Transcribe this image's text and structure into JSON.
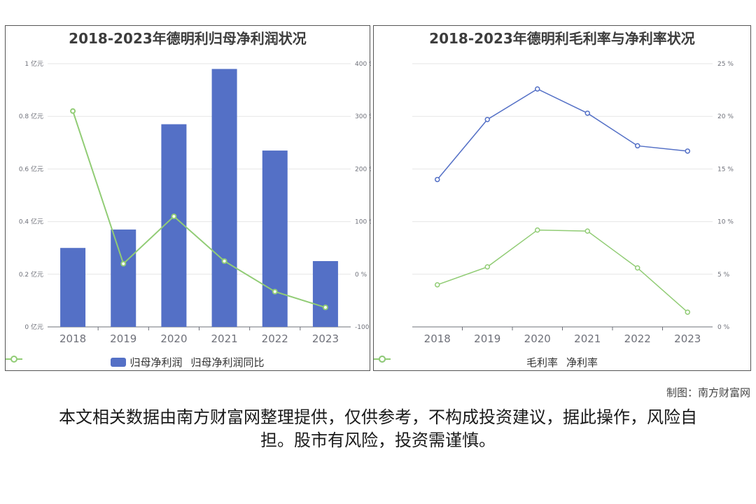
{
  "colors": {
    "bar": "#5470c6",
    "line_green": "#91cc75",
    "line_blue": "#5470c6",
    "axis_text": "#6e7079",
    "grid": "#e6e6e6"
  },
  "left_chart": {
    "title": "2018-2023年德明利归母净利润状况",
    "legend": {
      "bar_label": "归母净利润",
      "line_label": "归母净利润同比"
    },
    "y_left_ticks": [
      "0 亿元",
      "0.2 亿元",
      "0.4 亿元",
      "0.6 亿元",
      "0.8 亿元",
      "1 亿元"
    ],
    "y_right_ticks": [
      "-100 %",
      "0 %",
      "100 %",
      "200 %",
      "300 %",
      "400 %"
    ]
  },
  "right_chart": {
    "title": "2018-2023年德明利毛利率与净利率状况",
    "legend": {
      "series1_label": "毛利率",
      "series2_label": "净利率"
    },
    "y_right_ticks": [
      "0 %",
      "5 %",
      "10 %",
      "15 %",
      "20 %",
      "25 %"
    ]
  },
  "chart_data": [
    {
      "type": "bar",
      "title": "2018-2023年德明利归母净利润状况",
      "categories": [
        "2018",
        "2019",
        "2020",
        "2021",
        "2022",
        "2023"
      ],
      "ylim": [
        0,
        1
      ],
      "y2lim": [
        -100,
        400
      ],
      "grid": true,
      "legend_position": "bottom",
      "series": [
        {
          "name": "归母净利润",
          "type": "bar",
          "axis": "left",
          "unit": "亿元",
          "values": [
            0.3,
            0.37,
            0.77,
            0.98,
            0.67,
            0.25
          ]
        },
        {
          "name": "归母净利润同比",
          "type": "line",
          "axis": "right",
          "unit": "%",
          "values": [
            310,
            20,
            110,
            25,
            -33,
            -63
          ]
        }
      ]
    },
    {
      "type": "line",
      "title": "2018-2023年德明利毛利率与净利率状况",
      "categories": [
        "2018",
        "2019",
        "2020",
        "2021",
        "2022",
        "2023"
      ],
      "ylim": [
        0,
        25
      ],
      "grid": true,
      "legend_position": "bottom",
      "series": [
        {
          "name": "毛利率",
          "unit": "%",
          "values": [
            14.0,
            19.7,
            22.6,
            20.3,
            17.2,
            16.7
          ]
        },
        {
          "name": "净利率",
          "unit": "%",
          "values": [
            4.0,
            5.7,
            9.2,
            9.1,
            5.6,
            1.4
          ]
        }
      ]
    }
  ],
  "footer": {
    "credit": "制图：南方财富网",
    "disclaimer": "本文相关数据由南方财富网整理提供，仅供参考，不构成投资建议，据此操作，风险自担。股市有风险，投资需谨慎。"
  }
}
